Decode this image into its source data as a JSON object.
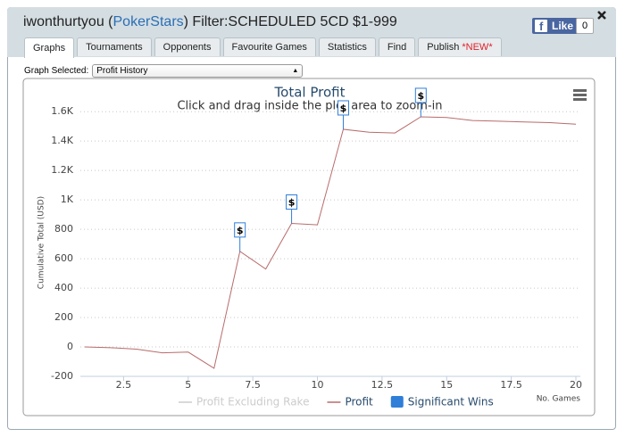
{
  "header": {
    "title_prefix": "iwonthurtyou (",
    "site": "PokerStars",
    "title_suffix": ") Filter:SCHEDULED 5CD $1-999",
    "like": "Like",
    "like_count": "0"
  },
  "tabs": [
    {
      "label": "Graphs"
    },
    {
      "label": "Tournaments"
    },
    {
      "label": "Opponents"
    },
    {
      "label": "Favourite Games"
    },
    {
      "label": "Statistics"
    },
    {
      "label": "Find"
    },
    {
      "label": "Publish",
      "badge": "*NEW*"
    }
  ],
  "graph_selector": {
    "label": "Graph Selected:",
    "value": "Profit History"
  },
  "chart_data": {
    "type": "line",
    "title": "Total Profit",
    "subtitle": "Click and drag inside the plot area to zoom-in",
    "y_label": "Cumulative Total (USD)",
    "x_label": "No. Games",
    "x": [
      1,
      2,
      3,
      4,
      5,
      6,
      7,
      8,
      9,
      10,
      11,
      12,
      13,
      14,
      15,
      16,
      17,
      18,
      19,
      20
    ],
    "series": [
      {
        "name": "Profit Excluding Rake",
        "color": "#cccccc",
        "visible": false
      },
      {
        "name": "Profit",
        "color": "#b86b6b",
        "visible": true,
        "values": [
          0,
          -5,
          -15,
          -40,
          -35,
          -145,
          650,
          530,
          840,
          830,
          1480,
          1460,
          1455,
          1565,
          1560,
          1540,
          1535,
          1530,
          1525,
          1515
        ]
      }
    ],
    "flags": {
      "name": "Significant Wins",
      "color": "#2f7ed8",
      "label": "$",
      "x": [
        7,
        9,
        11,
        14
      ]
    },
    "xlim": [
      1,
      20
    ],
    "xticks": [
      2.5,
      5,
      7.5,
      10,
      12.5,
      15,
      17.5,
      20
    ],
    "ylim": [
      -200,
      1680
    ],
    "yticks": [
      -200,
      0,
      200,
      400,
      600,
      800,
      {
        "value": 1000,
        "label": "1K"
      },
      {
        "value": 1200,
        "label": "1.2K"
      },
      {
        "value": 1400,
        "label": "1.4K"
      },
      {
        "value": 1600,
        "label": "1.6K"
      }
    ],
    "grid": true
  }
}
